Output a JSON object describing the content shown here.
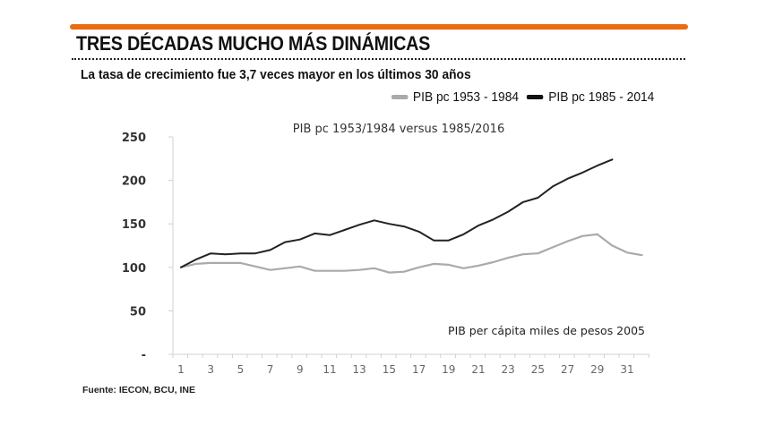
{
  "header": {
    "title": "TRES DÉCADAS MUCHO MÁS DINÁMICAS",
    "subtitle": "La tasa de crecimiento fue 3,7 veces mayor en los últimos 30 años",
    "accent_color": "#EB6A12"
  },
  "legend": [
    {
      "label": "PIB pc 1953 - 1984",
      "color": "#AAAAAA"
    },
    {
      "label": "PIB pc 1985 - 2014",
      "color": "#111111"
    }
  ],
  "footer": {
    "source": "Fuente: IECON, BCU, INE"
  },
  "chart_data": {
    "type": "line",
    "title": "PIB pc 1953/1984 versus 1985/2016",
    "annotation": "PIB per cápita miles de pesos 2005",
    "xlabel": "",
    "ylabel": "",
    "x": [
      1,
      2,
      3,
      4,
      5,
      6,
      7,
      8,
      9,
      10,
      11,
      12,
      13,
      14,
      15,
      16,
      17,
      18,
      19,
      20,
      21,
      22,
      23,
      24,
      25,
      26,
      27,
      28,
      29,
      30,
      31,
      32
    ],
    "x_tick_labels": [
      "1",
      "3",
      "5",
      "7",
      "9",
      "11",
      "13",
      "15",
      "17",
      "19",
      "21",
      "23",
      "25",
      "27",
      "29",
      "31"
    ],
    "y_tick_labels": [
      "-",
      "50",
      "100",
      "150",
      "200",
      "250"
    ],
    "ylim": [
      0,
      250
    ],
    "grid": false,
    "legend_position": "top-right",
    "series": [
      {
        "name": "PIB pc 1953 - 1984",
        "color": "#AAAAAA",
        "values": [
          100,
          104,
          105,
          105,
          105,
          101,
          97,
          99,
          101,
          96,
          96,
          96,
          97,
          99,
          94,
          95,
          100,
          104,
          103,
          99,
          102,
          106,
          111,
          115,
          116,
          123,
          130,
          136,
          138,
          125,
          117,
          114
        ]
      },
      {
        "name": "PIB pc 1985 - 2014",
        "color": "#222222",
        "values": [
          100,
          109,
          116,
          115,
          116,
          116,
          120,
          129,
          132,
          139,
          137,
          143,
          149,
          154,
          150,
          147,
          141,
          131,
          131,
          138,
          148,
          155,
          164,
          175,
          180,
          193,
          202,
          209,
          217,
          224
        ]
      }
    ]
  }
}
